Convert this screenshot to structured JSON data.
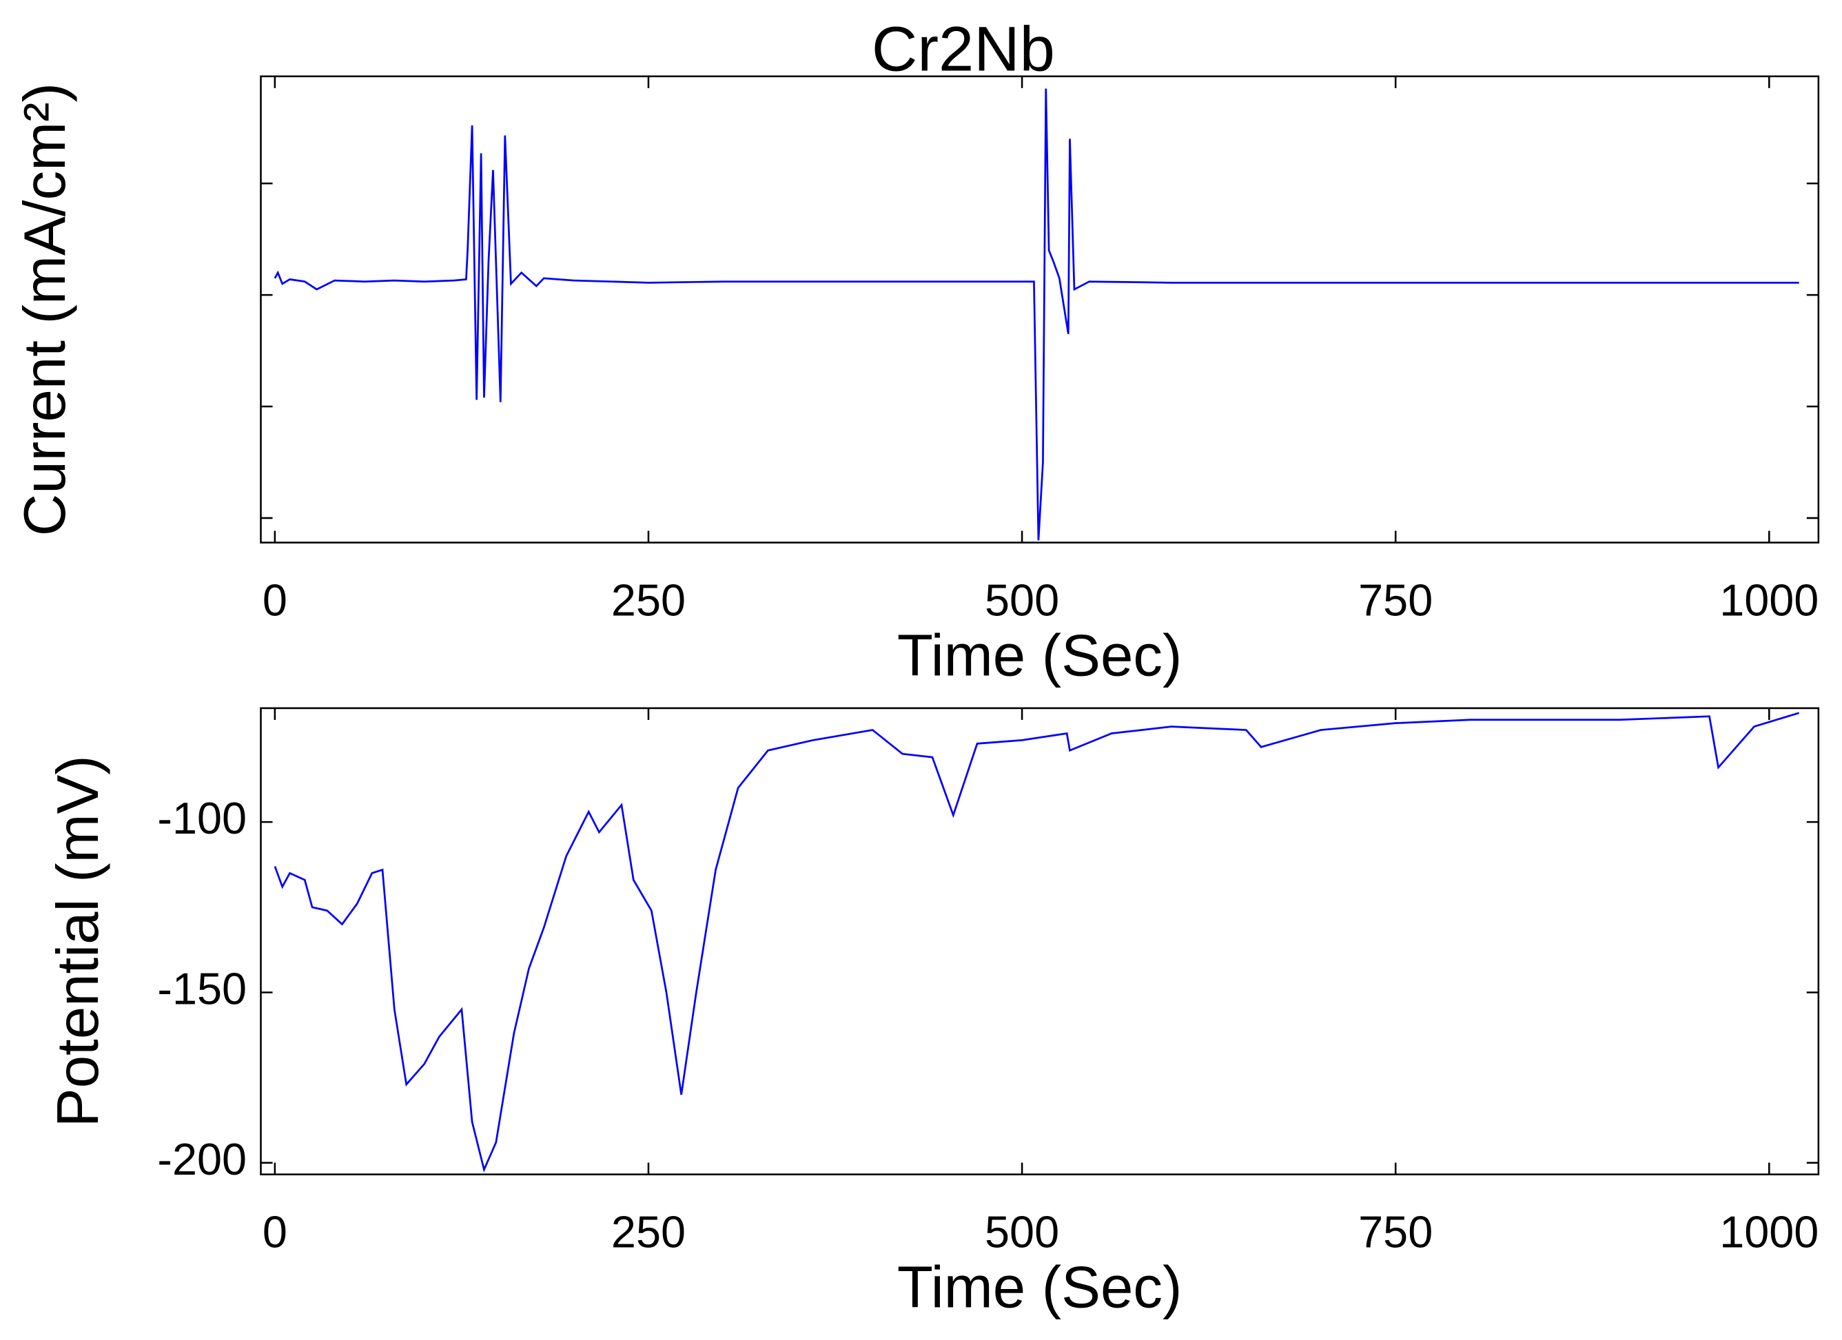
{
  "chart_data": [
    {
      "type": "line",
      "title": "Cr2Nb",
      "xlabel": "Time (Sec)",
      "ylabel": "Current (mA/cm²)",
      "xlim": [
        -9.4,
        1033
      ],
      "ylim": [
        -2.22,
        1.96
      ],
      "xticks": [
        0,
        250,
        500,
        750,
        1000
      ],
      "yticks": [
        -2,
        -1,
        0,
        1
      ],
      "ytick_labels": false,
      "color": "#0000ff",
      "x": [
        0,
        2,
        5,
        10,
        20,
        28,
        40,
        60,
        80,
        100,
        120,
        128,
        129,
        132,
        135,
        138,
        140,
        143,
        146,
        151,
        154,
        158,
        165,
        175,
        180,
        200,
        250,
        300,
        400,
        508,
        511,
        514,
        516,
        518,
        521,
        525,
        531,
        532,
        535,
        545,
        600,
        800,
        1020
      ],
      "values": [
        0.15,
        0.2,
        0.1,
        0.14,
        0.12,
        0.05,
        0.13,
        0.12,
        0.13,
        0.12,
        0.13,
        0.14,
        0.4,
        1.52,
        -0.94,
        1.27,
        -0.92,
        0.3,
        1.12,
        -0.96,
        1.43,
        0.1,
        0.2,
        0.08,
        0.15,
        0.13,
        0.11,
        0.12,
        0.12,
        0.12,
        -2.2,
        -1.5,
        1.85,
        0.4,
        0.3,
        0.15,
        -0.35,
        1.4,
        0.05,
        0.12,
        0.11,
        0.11,
        0.11
      ]
    },
    {
      "type": "line",
      "xlabel": "Time (Sec)",
      "ylabel": "Potential (mV)",
      "xlim": [
        -9.4,
        1033
      ],
      "ylim": [
        -203.4,
        -66.6
      ],
      "xticks": [
        0,
        250,
        500,
        750,
        1000
      ],
      "yticks": [
        -200,
        -150,
        -100
      ],
      "color": "#0000ff",
      "x": [
        0,
        5,
        10,
        20,
        25,
        35,
        45,
        55,
        65,
        72,
        80,
        88,
        100,
        110,
        125,
        132,
        140,
        148,
        160,
        170,
        180,
        195,
        210,
        217,
        232,
        240,
        252,
        262,
        272,
        282,
        295,
        310,
        330,
        360,
        400,
        420,
        440,
        454,
        470,
        500,
        530,
        532,
        560,
        600,
        650,
        660,
        700,
        750,
        800,
        900,
        960,
        966,
        990,
        1020
      ],
      "values": [
        -113,
        -119,
        -115,
        -117,
        -125,
        -126,
        -130,
        -124,
        -115,
        -114,
        -155,
        -177,
        -171,
        -163,
        -155,
        -188,
        -202,
        -194,
        -162,
        -143,
        -131,
        -110,
        -97,
        -103,
        -95,
        -117,
        -126,
        -150,
        -180,
        -150,
        -114,
        -90,
        -79,
        -76,
        -73,
        -80,
        -81,
        -98,
        -77,
        -76,
        -74,
        -79,
        -74,
        -72,
        -73,
        -78,
        -73,
        -71,
        -70,
        -70,
        -69,
        -84,
        -72,
        -68
      ]
    }
  ]
}
